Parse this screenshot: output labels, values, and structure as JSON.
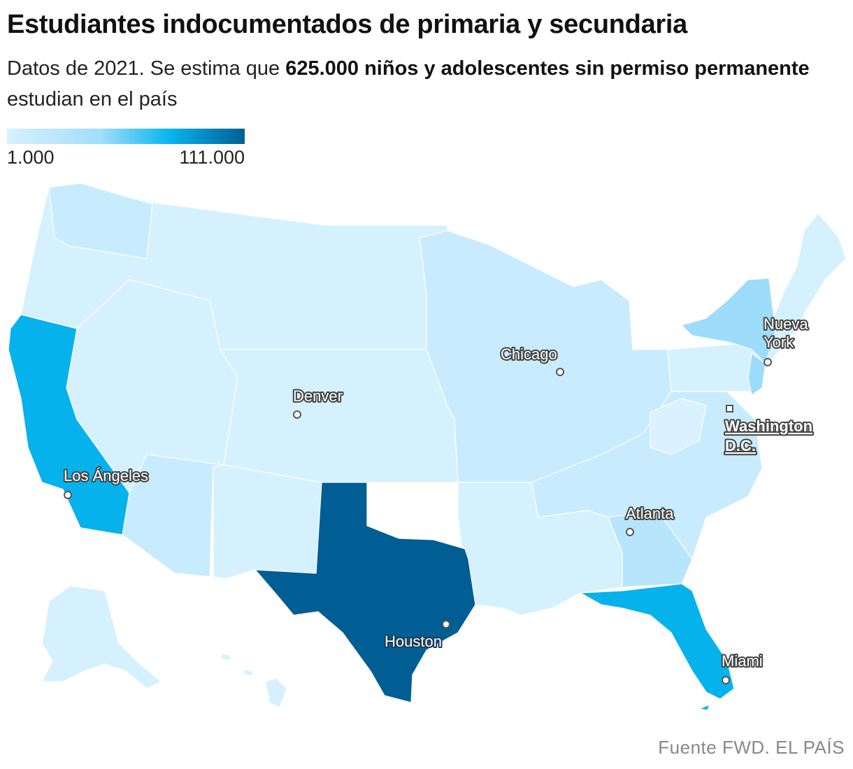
{
  "title": "Estudiantes indocumentados de primaria y secundaria",
  "subtitle": {
    "part1": "Datos de 2021. Se estima que ",
    "bold": "625.000 niños y adolescentes sin permiso permanente",
    "part2": " estudian en el país"
  },
  "legend": {
    "min_label": "1.000",
    "max_label": "111.000",
    "colors": [
      "#d7f1fd",
      "#9fddfb",
      "#08b6ef",
      "#005f96"
    ]
  },
  "source": {
    "label": "Fuente FWD. EL PAÍS"
  },
  "cities": [
    {
      "name": "Nueva York",
      "lines": [
        "Nueva",
        "York"
      ]
    },
    {
      "name": "Chicago",
      "lines": [
        "Chicago"
      ]
    },
    {
      "name": "Washington D.C.",
      "lines": [
        "Washington",
        "D.C."
      ],
      "capital": true
    },
    {
      "name": "Denver",
      "lines": [
        "Denver"
      ]
    },
    {
      "name": "Los Ángeles",
      "lines": [
        "Los Ángeles"
      ]
    },
    {
      "name": "Atlanta",
      "lines": [
        "Atlanta"
      ]
    },
    {
      "name": "Houston",
      "lines": [
        "Houston"
      ]
    },
    {
      "name": "Miami",
      "lines": [
        "Miami"
      ]
    }
  ],
  "state_colors": {
    "light": "#d5f1fd",
    "light2": "#c8ecfd",
    "mid": "#9ddcfb",
    "bright": "#06b2ec",
    "dark": "#005e95"
  }
}
